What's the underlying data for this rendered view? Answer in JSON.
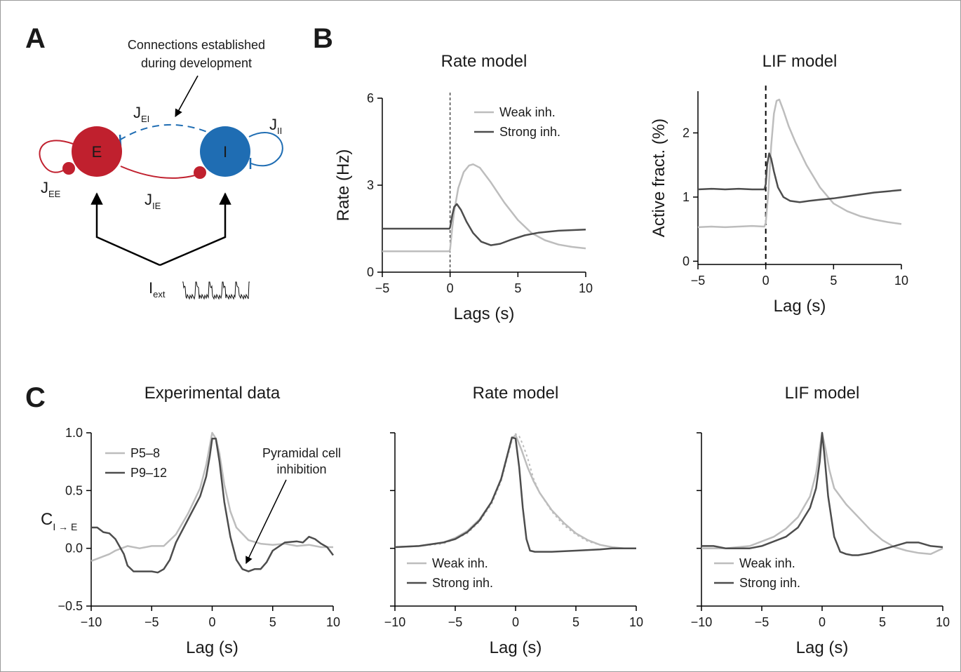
{
  "panels": {
    "A": "A",
    "B": "B",
    "C": "C"
  },
  "schematic": {
    "annotation": "Connections established during development",
    "annotation_lines": [
      "Connections established",
      "during development"
    ],
    "nodes": {
      "E": "E",
      "I": "I"
    },
    "labels": {
      "jei": {
        "main": "J",
        "sub": "EI"
      },
      "jii": {
        "main": "J",
        "sub": "II"
      },
      "jee": {
        "main": "J",
        "sub": "EE"
      },
      "jie": {
        "main": "J",
        "sub": "IE"
      },
      "iext": {
        "main": "I",
        "sub": "ext"
      }
    },
    "colors": {
      "E": "#c0202e",
      "I": "#1f6db3"
    }
  },
  "chart_data": [
    {
      "id": "B1",
      "type": "line",
      "title": "Rate model",
      "xlabel": "Lags (s)",
      "ylabel": "Rate (Hz)",
      "xlim": [
        -5,
        10
      ],
      "ylim": [
        0,
        6
      ],
      "xticks": [
        -5,
        0,
        5,
        10
      ],
      "yticks": [
        0,
        3,
        6
      ],
      "vline": {
        "x": 0,
        "style": "dashed"
      },
      "legend_position": "top-right",
      "series": [
        {
          "name": "Weak inh.",
          "color": "#bdbdbd",
          "x": [
            -5,
            -0.05,
            0,
            0.15,
            0.3,
            0.6,
            1,
            1.4,
            1.7,
            2.2,
            3,
            4,
            5,
            6,
            7,
            8,
            9,
            10
          ],
          "y": [
            0.72,
            0.72,
            0.8,
            1.5,
            2.1,
            2.9,
            3.45,
            3.68,
            3.72,
            3.6,
            3.1,
            2.4,
            1.8,
            1.35,
            1.1,
            0.95,
            0.87,
            0.82
          ]
        },
        {
          "name": "Strong inh.",
          "color": "#4d4d4d",
          "x": [
            -5,
            -0.05,
            0,
            0.15,
            0.3,
            0.5,
            0.8,
            1.2,
            1.7,
            2.3,
            3,
            3.7,
            4.5,
            5.5,
            6.5,
            8,
            10
          ],
          "y": [
            1.5,
            1.5,
            1.55,
            1.95,
            2.25,
            2.35,
            2.15,
            1.75,
            1.35,
            1.05,
            0.93,
            0.98,
            1.12,
            1.27,
            1.36,
            1.43,
            1.47
          ]
        }
      ]
    },
    {
      "id": "B2",
      "type": "line",
      "title": "LIF model",
      "xlabel": "Lag (s)",
      "ylabel": "Active fract. (%)",
      "xlim": [
        -5,
        10
      ],
      "ylim": [
        -0.05,
        2.65
      ],
      "xticks": [
        -5,
        0,
        5,
        10
      ],
      "yticks": [
        0,
        1,
        2
      ],
      "vline": {
        "x": 0,
        "style": "dashed"
      },
      "series": [
        {
          "name": "Weak inh.",
          "color": "#bdbdbd",
          "x": [
            -5,
            -4,
            -3,
            -2,
            -1,
            -0.1,
            0,
            0.2,
            0.4,
            0.6,
            0.8,
            1,
            1.3,
            1.7,
            2.2,
            3,
            4,
            5,
            6,
            7,
            8,
            9,
            10
          ],
          "y": [
            0.53,
            0.54,
            0.53,
            0.54,
            0.55,
            0.54,
            0.6,
            1.1,
            1.8,
            2.3,
            2.5,
            2.52,
            2.35,
            2.1,
            1.85,
            1.5,
            1.15,
            0.9,
            0.78,
            0.7,
            0.65,
            0.61,
            0.58
          ]
        },
        {
          "name": "Strong inh.",
          "color": "#4d4d4d",
          "x": [
            -5,
            -4,
            -3,
            -2,
            -1,
            -0.1,
            0,
            0.1,
            0.25,
            0.4,
            0.6,
            0.9,
            1.3,
            1.8,
            2.5,
            3.2,
            4,
            5,
            6,
            7,
            8,
            9,
            10
          ],
          "y": [
            1.12,
            1.13,
            1.12,
            1.13,
            1.12,
            1.12,
            1.2,
            1.5,
            1.68,
            1.6,
            1.4,
            1.15,
            1.0,
            0.94,
            0.92,
            0.94,
            0.96,
            0.98,
            1.01,
            1.04,
            1.07,
            1.09,
            1.11
          ]
        }
      ]
    },
    {
      "id": "C1",
      "type": "line",
      "title": "Experimental data",
      "xlabel": "Lag (s)",
      "ylabel": {
        "main": "C",
        "sub": "I → E"
      },
      "xlim": [
        -10,
        10
      ],
      "ylim": [
        -0.5,
        1.0
      ],
      "xticks": [
        -10,
        -5,
        0,
        5,
        10
      ],
      "yticks": [
        -0.5,
        0.0,
        0.5,
        1.0
      ],
      "ytick_labels": [
        "−0.5",
        "0.0",
        "0.5",
        "1.0"
      ],
      "legend_position": "top-left",
      "annotation": {
        "text": [
          "Pyramidal cell",
          "inhibition"
        ],
        "arrow_to": [
          2.8,
          -0.13
        ]
      },
      "series": [
        {
          "name": "P5–8",
          "color": "#bdbdbd",
          "x": [
            -10,
            -9,
            -8.5,
            -8,
            -7,
            -6,
            -5,
            -4,
            -3,
            -2,
            -1,
            -0.5,
            0,
            0.3,
            0.6,
            1,
            1.5,
            2,
            3,
            4,
            5,
            6,
            7,
            8,
            9,
            10
          ],
          "y": [
            -0.11,
            -0.07,
            -0.05,
            -0.02,
            0.02,
            0.0,
            0.02,
            0.02,
            0.12,
            0.3,
            0.52,
            0.72,
            1.0,
            0.95,
            0.82,
            0.55,
            0.32,
            0.18,
            0.07,
            0.04,
            0.03,
            0.04,
            0.02,
            0.03,
            0.01,
            0.01
          ]
        },
        {
          "name": "P9–12",
          "color": "#4d4d4d",
          "x": [
            -10,
            -9.5,
            -9,
            -8.5,
            -8,
            -7.3,
            -7,
            -6.5,
            -6,
            -5,
            -4.5,
            -4,
            -3.5,
            -3,
            -2,
            -1,
            -0.5,
            -0.2,
            0,
            0.3,
            0.6,
            1,
            1.5,
            2,
            2.5,
            3,
            3.5,
            4,
            4.5,
            5,
            6,
            7,
            7.5,
            8,
            8.5,
            9,
            9.5,
            10
          ],
          "y": [
            0.18,
            0.18,
            0.14,
            0.13,
            0.08,
            -0.05,
            -0.15,
            -0.2,
            -0.2,
            -0.2,
            -0.21,
            -0.18,
            -0.1,
            0.05,
            0.25,
            0.45,
            0.62,
            0.8,
            0.95,
            0.95,
            0.75,
            0.4,
            0.1,
            -0.1,
            -0.18,
            -0.2,
            -0.18,
            -0.18,
            -0.12,
            -0.02,
            0.05,
            0.06,
            0.05,
            0.1,
            0.08,
            0.04,
            0.01,
            -0.06
          ]
        }
      ]
    },
    {
      "id": "C2",
      "type": "line",
      "title": "Rate model",
      "xlabel": "Lag (s)",
      "xlim": [
        -10,
        10
      ],
      "ylim": [
        -0.5,
        1.0
      ],
      "xticks": [
        -10,
        -5,
        0,
        5,
        10
      ],
      "yticks": [
        -0.5,
        0.0,
        0.5,
        1.0
      ],
      "legend_position": "bottom-left",
      "series": [
        {
          "name": "Weak inh.",
          "color": "#bdbdbd",
          "x": [
            -10,
            -8,
            -6,
            -5,
            -4,
            -3,
            -2,
            -1.2,
            -0.7,
            -0.3,
            0,
            0.5,
            1,
            1.5,
            2,
            3,
            4,
            5,
            6,
            7,
            8,
            9,
            10
          ],
          "y": [
            0.01,
            0.02,
            0.05,
            0.09,
            0.15,
            0.25,
            0.4,
            0.6,
            0.8,
            0.95,
            0.98,
            0.85,
            0.7,
            0.58,
            0.48,
            0.33,
            0.22,
            0.13,
            0.07,
            0.03,
            0.01,
            0.0,
            0.0
          ]
        },
        {
          "name": "",
          "color": "#bdbdbd",
          "style": "dotted",
          "x": [
            -10,
            -8,
            -6,
            -5,
            -4,
            -3,
            -2,
            -1.2,
            -0.7,
            -0.3,
            0,
            0.3,
            0.6,
            1,
            1.5,
            2,
            3,
            4,
            5,
            6,
            7,
            8,
            9,
            10
          ],
          "y": [
            0.01,
            0.02,
            0.04,
            0.08,
            0.13,
            0.23,
            0.38,
            0.58,
            0.78,
            0.93,
            0.99,
            0.97,
            0.9,
            0.78,
            0.6,
            0.48,
            0.32,
            0.2,
            0.12,
            0.06,
            0.03,
            0.01,
            0.0,
            0.0
          ]
        },
        {
          "name": "Strong inh.",
          "color": "#4d4d4d",
          "x": [
            -10,
            -8,
            -6,
            -5,
            -4,
            -3,
            -2,
            -1.2,
            -0.7,
            -0.3,
            0,
            0.3,
            0.6,
            0.9,
            1.2,
            1.6,
            2,
            3,
            5,
            7,
            8,
            9,
            10
          ],
          "y": [
            0.01,
            0.02,
            0.05,
            0.08,
            0.14,
            0.24,
            0.4,
            0.6,
            0.8,
            0.96,
            0.95,
            0.7,
            0.35,
            0.08,
            -0.02,
            -0.03,
            -0.03,
            -0.03,
            -0.02,
            -0.01,
            0.0,
            0.0,
            0.0
          ]
        }
      ]
    },
    {
      "id": "C3",
      "type": "line",
      "title": "LIF model",
      "xlabel": "Lag (s)",
      "xlim": [
        -10,
        10
      ],
      "ylim": [
        -0.5,
        1.0
      ],
      "xticks": [
        -10,
        -5,
        0,
        5,
        10
      ],
      "yticks": [
        -0.5,
        0.0,
        0.5,
        1.0
      ],
      "legend_position": "bottom-left",
      "series": [
        {
          "name": "Weak inh.",
          "color": "#bdbdbd",
          "x": [
            -10,
            -9,
            -8,
            -7,
            -6,
            -5,
            -4,
            -3,
            -2,
            -1,
            -0.5,
            0,
            0.3,
            0.6,
            1,
            1.5,
            2,
            3,
            4,
            5,
            6,
            7,
            8,
            9,
            10
          ],
          "y": [
            0.0,
            0.0,
            0.0,
            0.01,
            0.02,
            0.06,
            0.1,
            0.17,
            0.27,
            0.45,
            0.65,
            1.0,
            0.85,
            0.68,
            0.52,
            0.45,
            0.38,
            0.27,
            0.16,
            0.07,
            0.01,
            -0.02,
            -0.04,
            -0.05,
            0.0
          ]
        },
        {
          "name": "Strong inh.",
          "color": "#4d4d4d",
          "x": [
            -10,
            -9,
            -8,
            -7,
            -6,
            -5,
            -4,
            -3,
            -2,
            -1,
            -0.5,
            -0.2,
            0,
            0.2,
            0.5,
            1,
            1.5,
            2,
            2.5,
            3,
            4,
            5,
            6,
            7,
            8,
            9,
            10
          ],
          "y": [
            0.02,
            0.02,
            0.0,
            0.0,
            0.0,
            0.02,
            0.06,
            0.1,
            0.18,
            0.35,
            0.52,
            0.75,
            1.0,
            0.8,
            0.45,
            0.1,
            -0.03,
            -0.05,
            -0.06,
            -0.06,
            -0.04,
            -0.01,
            0.02,
            0.05,
            0.05,
            0.02,
            0.01
          ]
        }
      ]
    }
  ]
}
